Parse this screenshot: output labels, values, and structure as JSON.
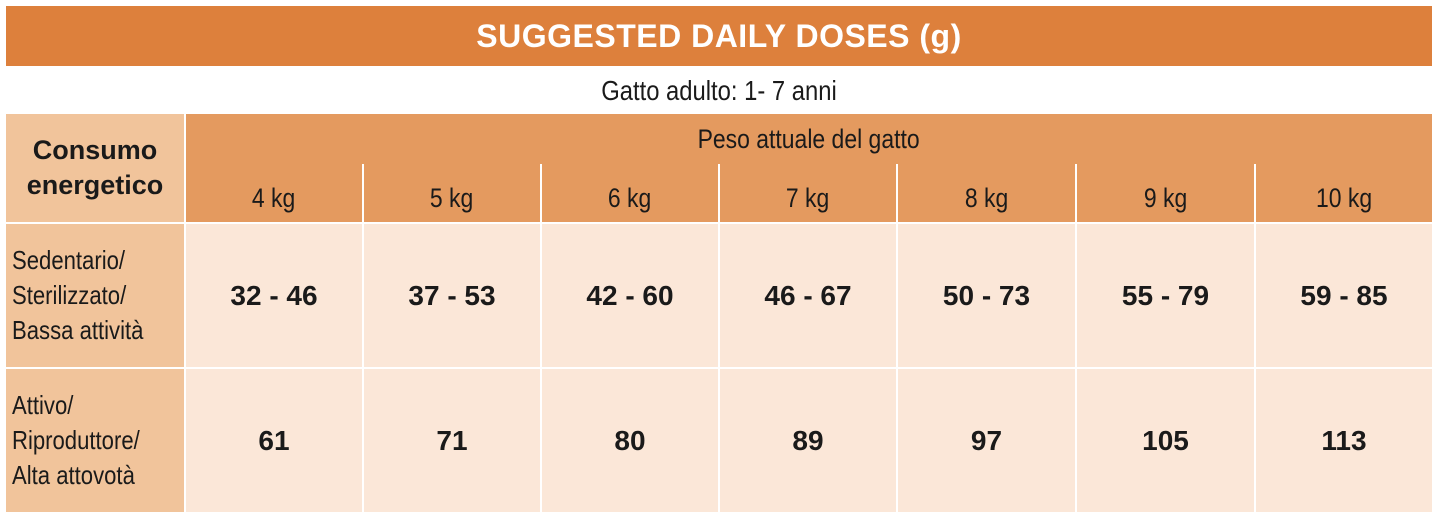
{
  "title": "SUGGESTED DAILY DOSES (g)",
  "subtitle": "Gatto adulto: 1- 7 anni",
  "corner_header": [
    "Consumo",
    "energetico"
  ],
  "weight_header": "Peso attuale del gatto",
  "weights": [
    "4 kg",
    "5 kg",
    "6 kg",
    "7 kg",
    "8 kg",
    "9 kg",
    "10 kg"
  ],
  "rows": [
    {
      "label": [
        "Sedentario/",
        "Sterilizzato/",
        "Bassa attività"
      ],
      "values": [
        "32 - 46",
        "37 - 53",
        "42 - 60",
        "46 - 67",
        "50 - 73",
        "55 - 79",
        "59 - 85"
      ]
    },
    {
      "label": [
        "Attivo/",
        "Riproduttore/",
        "Alta attovotà"
      ],
      "values": [
        "61",
        "71",
        "80",
        "89",
        "97",
        "105",
        "113"
      ]
    }
  ],
  "colors": {
    "title_bg": "#dd803c",
    "header_bg": "#e49a5f",
    "label_bg": "#f1c49b",
    "value_bg": "#fbe7d8"
  }
}
